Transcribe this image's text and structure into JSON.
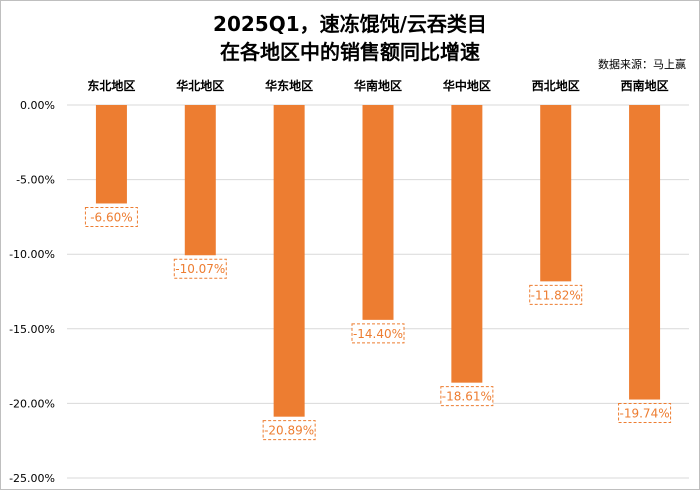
{
  "chart_data": {
    "type": "bar",
    "title_lines": [
      "2025Q1，速冻馄饨/云吞类目",
      "在各地区中的销售额同比增速"
    ],
    "source": "数据来源：马上赢",
    "categories": [
      "东北地区",
      "华北地区",
      "华东地区",
      "华南地区",
      "华中地区",
      "西北地区",
      "西南地区"
    ],
    "values": [
      -6.6,
      -10.07,
      -20.89,
      -14.4,
      -18.61,
      -11.82,
      -19.74
    ],
    "data_labels": [
      "-6.60%",
      "-10.07%",
      "-20.89%",
      "-14.40%",
      "-18.61%",
      "-11.82%",
      "-19.74%"
    ],
    "ylim": [
      -25,
      0
    ],
    "yticks": [
      0,
      -5,
      -10,
      -15,
      -20,
      -25
    ],
    "ytick_labels": [
      "0.00%",
      "-5.00%",
      "-10.00%",
      "-15.00%",
      "-20.00%",
      "-25.00%"
    ],
    "xlabel": "",
    "ylabel": "",
    "bar_color": "#ed7d31",
    "grid": true,
    "grid_color": "#d9d9d9",
    "legend": "none"
  }
}
